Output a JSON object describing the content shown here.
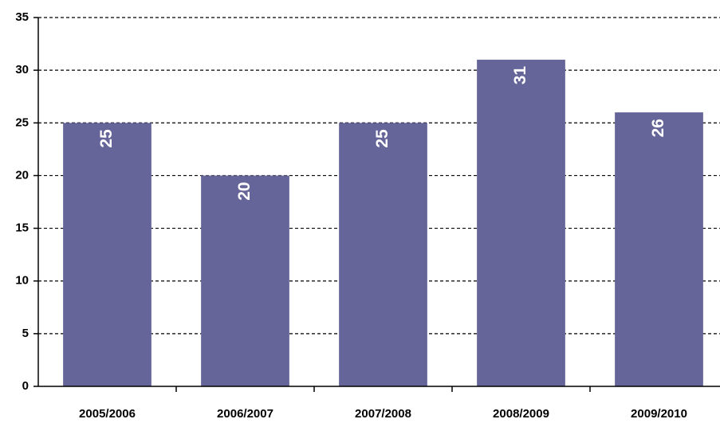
{
  "chart_data": {
    "type": "bar",
    "categories": [
      "2005/2006",
      "2006/2007",
      "2007/2008",
      "2008/2009",
      "2009/2010"
    ],
    "values": [
      25,
      20,
      25,
      31,
      26
    ],
    "color": "#65659a",
    "ylim": [
      0,
      35
    ],
    "yticks": [
      0,
      5,
      10,
      15,
      20,
      25,
      30,
      35
    ],
    "grid": true
  }
}
